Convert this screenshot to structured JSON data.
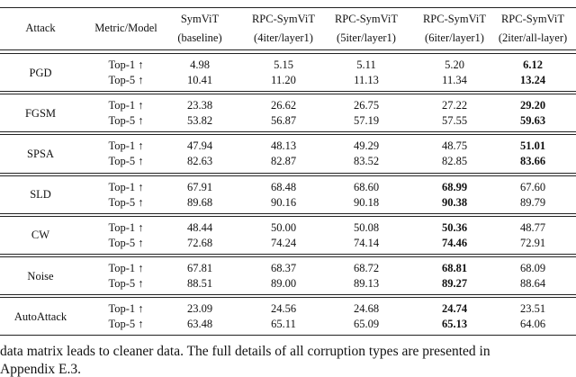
{
  "table": {
    "header": [
      [
        "Attack"
      ],
      [
        "Metric/Model"
      ],
      [
        "SymViT",
        "(baseline)"
      ],
      [
        "RPC-SymViT",
        "(4iter/layer1)"
      ],
      [
        "RPC-SymViT",
        "(5iter/layer1)"
      ],
      [
        "RPC-SymViT",
        "(6iter/layer1)"
      ],
      [
        "RPC-SymViT",
        "(2iter/all-layer)"
      ]
    ],
    "groups": [
      {
        "attack": "PGD",
        "bold_column": 4,
        "rows": [
          {
            "metric": "Top-1 ↑",
            "values": [
              "4.98",
              "5.15",
              "5.11",
              "5.20",
              "6.12"
            ]
          },
          {
            "metric": "Top-5 ↑",
            "values": [
              "10.41",
              "11.20",
              "11.13",
              "11.34",
              "13.24"
            ]
          }
        ]
      },
      {
        "attack": "FGSM",
        "bold_column": 4,
        "rows": [
          {
            "metric": "Top-1 ↑",
            "values": [
              "23.38",
              "26.62",
              "26.75",
              "27.22",
              "29.20"
            ]
          },
          {
            "metric": "Top-5 ↑",
            "values": [
              "53.82",
              "56.87",
              "57.19",
              "57.55",
              "59.63"
            ]
          }
        ]
      },
      {
        "attack": "SPSA",
        "bold_column": 4,
        "rows": [
          {
            "metric": "Top-1 ↑",
            "values": [
              "47.94",
              "48.13",
              "49.29",
              "48.75",
              "51.01"
            ]
          },
          {
            "metric": "Top-5 ↑",
            "values": [
              "82.63",
              "82.87",
              "83.52",
              "82.85",
              "83.66"
            ]
          }
        ]
      },
      {
        "attack": "SLD",
        "bold_column": 3,
        "rows": [
          {
            "metric": "Top-1 ↑",
            "values": [
              "67.91",
              "68.48",
              "68.60",
              "68.99",
              "67.60"
            ]
          },
          {
            "metric": "Top-5 ↑",
            "values": [
              "89.68",
              "90.16",
              "90.18",
              "90.38",
              "89.79"
            ]
          }
        ]
      },
      {
        "attack": "CW",
        "bold_column": 3,
        "rows": [
          {
            "metric": "Top-1 ↑",
            "values": [
              "48.44",
              "50.00",
              "50.08",
              "50.36",
              "48.77"
            ]
          },
          {
            "metric": "Top-5 ↑",
            "values": [
              "72.68",
              "74.24",
              "74.14",
              "74.46",
              "72.91"
            ]
          }
        ]
      },
      {
        "attack": "Noise",
        "bold_column": 3,
        "rows": [
          {
            "metric": "Top-1 ↑",
            "values": [
              "67.81",
              "68.37",
              "68.72",
              "68.81",
              "68.09"
            ]
          },
          {
            "metric": "Top-5 ↑",
            "values": [
              "88.51",
              "89.00",
              "89.13",
              "89.27",
              "88.64"
            ]
          }
        ]
      },
      {
        "attack": "AutoAttack",
        "bold_column": 3,
        "rows": [
          {
            "metric": "Top-1 ↑",
            "values": [
              "23.09",
              "24.56",
              "24.68",
              "24.74",
              "23.51"
            ]
          },
          {
            "metric": "Top-5 ↑",
            "values": [
              "63.48",
              "65.11",
              "65.09",
              "65.13",
              "64.06"
            ]
          }
        ]
      }
    ]
  },
  "body_text": [
    "data matrix leads to cleaner data. The full details of all corruption types are presented in",
    "Appendix E.3."
  ]
}
